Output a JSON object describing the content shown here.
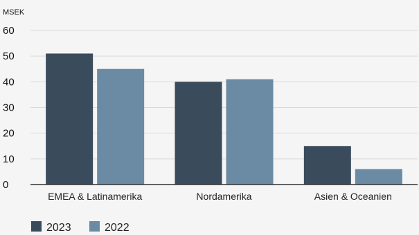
{
  "chart_data": {
    "type": "bar",
    "unit_label": "MSEK",
    "categories": [
      "EMEA & Latinamerika",
      "Nordamerika",
      "Asien & Oceanien"
    ],
    "series": [
      {
        "name": "2023",
        "color": "#3a4b5c",
        "values": [
          51,
          40,
          15
        ]
      },
      {
        "name": "2022",
        "color": "#6b8aa3",
        "values": [
          45,
          41,
          6
        ]
      }
    ],
    "ylim": [
      0,
      60
    ],
    "y_ticks": [
      "0",
      "10",
      "20",
      "30",
      "40",
      "50",
      "60"
    ],
    "grid": true,
    "legend_position": "bottom-left",
    "colors": {
      "background": "#f5f5f5",
      "grid": "#d9d9d9",
      "axis": "#333333"
    }
  }
}
